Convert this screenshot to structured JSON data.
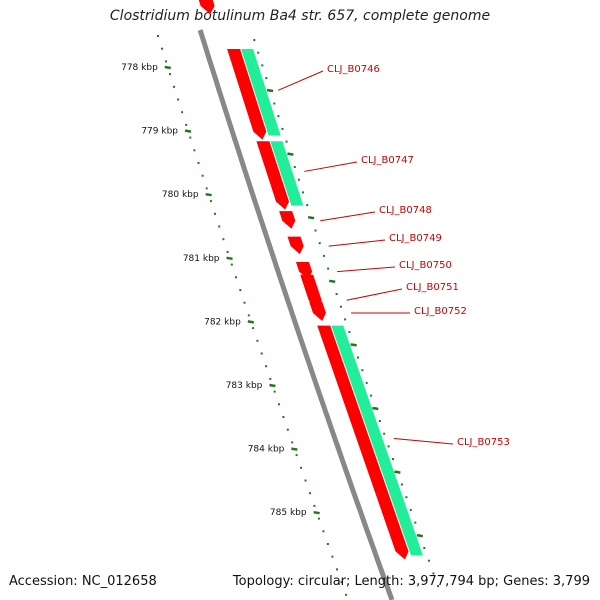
{
  "header": {
    "title": "Clostridium botulinum Ba4 str. 657, complete genome"
  },
  "footer": {
    "accession": "Accession: NC_012658",
    "summary": "Topology: circular; Length: 3,977,794 bp; Genes: 3,799"
  },
  "ruler": {
    "labels": [
      {
        "text": "778 kbp",
        "pos": 778
      },
      {
        "text": "779 kbp",
        "pos": 779
      },
      {
        "text": "780 kbp",
        "pos": 780
      },
      {
        "text": "781 kbp",
        "pos": 781
      },
      {
        "text": "782 kbp",
        "pos": 782
      },
      {
        "text": "783 kbp",
        "pos": 783
      },
      {
        "text": "784 kbp",
        "pos": 784
      },
      {
        "text": "785 kbp",
        "pos": 785
      }
    ]
  },
  "genes": [
    {
      "label": "CLJ_B0746",
      "start": 778.0,
      "end": 779.3
    },
    {
      "label": "CLJ_B0747",
      "start": 779.45,
      "end": 780.4
    },
    {
      "label": "CLJ_B0748",
      "start": 780.55,
      "end": 780.7
    },
    {
      "label": "CLJ_B0749",
      "start": 780.95,
      "end": 781.1
    },
    {
      "label": "CLJ_B0750",
      "start": 781.35,
      "end": 781.5
    },
    {
      "label": "CLJ_B0751",
      "start": 781.55,
      "end": 781.95
    },
    {
      "label": "CLJ_B0752",
      "start": 781.97,
      "end": 782.15
    },
    {
      "label": "CLJ_B0753",
      "start": 782.35,
      "end": 785.9
    }
  ],
  "colors": {
    "gene": "#ff0000",
    "cds": "#22ee99",
    "backbone": "#888888",
    "ruler": "#227722",
    "label": "#cc0000"
  }
}
